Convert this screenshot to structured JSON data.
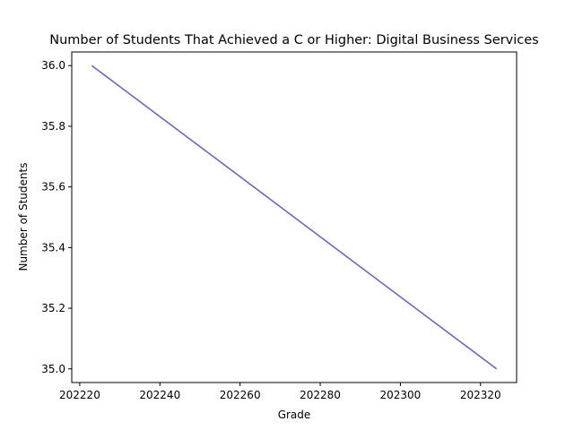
{
  "chart_data": {
    "type": "line",
    "title": "Number of Students That Achieved a C or Higher: Digital Business Services",
    "xlabel": "Grade",
    "ylabel": "Number of Students",
    "xlim": [
      202218,
      202329
    ],
    "ylim": [
      34.955,
      36.045
    ],
    "x_ticks": [
      202220,
      202240,
      202260,
      202280,
      202300,
      202320
    ],
    "y_ticks": [
      35.0,
      35.2,
      35.4,
      35.6,
      35.8,
      36.0
    ],
    "grid": false,
    "series": [
      {
        "color": "#6a5acd",
        "x": [
          202223,
          202324
        ],
        "y": [
          36.0,
          35.0
        ]
      }
    ]
  }
}
